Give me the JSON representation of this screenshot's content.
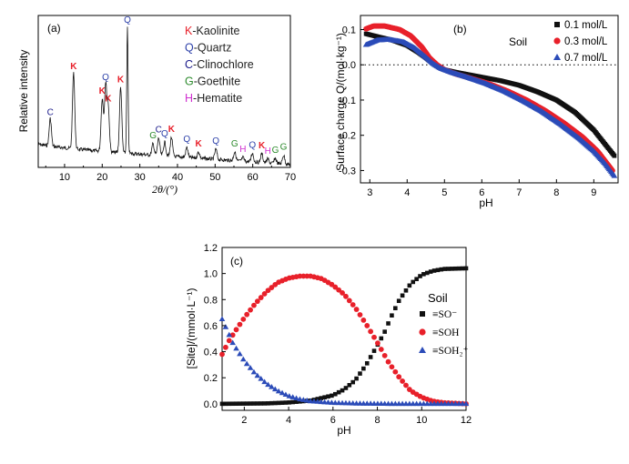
{
  "chart_data": [
    {
      "panel": "(a)",
      "type": "line",
      "xlabel": "2θ/(°)",
      "ylabel": "Relative intensity",
      "xlim": [
        3,
        70
      ],
      "xticks": [
        10,
        20,
        30,
        40,
        50,
        60,
        70
      ],
      "legend": {
        "placement": "top-right",
        "entries": [
          {
            "code": "K",
            "name": "-Kaolinite",
            "color": "#e8202a"
          },
          {
            "code": "Q",
            "name": "-Quartz",
            "color": "#2b3fa8"
          },
          {
            "code": "C",
            "name": "-Clinochlore",
            "color": "#1a1a8a"
          },
          {
            "code": "G",
            "name": "-Goethite",
            "color": "#2e8b2e"
          },
          {
            "code": "H",
            "name": "-Hematite",
            "color": "#d030d0"
          }
        ]
      },
      "peaks": [
        {
          "x": 6.2,
          "h": 0.22,
          "label": "C",
          "color": "#1a1a8a"
        },
        {
          "x": 12.4,
          "h": 0.6,
          "label": "K",
          "color": "#e8202a"
        },
        {
          "x": 20.0,
          "h": 0.42,
          "label": "K",
          "color": "#e8202a"
        },
        {
          "x": 20.9,
          "h": 0.53,
          "label": "Q",
          "color": "#2b3fa8"
        },
        {
          "x": 21.6,
          "h": 0.36,
          "label": "K",
          "color": "#e8202a"
        },
        {
          "x": 24.9,
          "h": 0.52,
          "label": "K",
          "color": "#e8202a"
        },
        {
          "x": 26.7,
          "h": 1.0,
          "label": "Q",
          "color": "#2b3fa8"
        },
        {
          "x": 33.5,
          "h": 0.09,
          "label": "G",
          "color": "#2e8b2e"
        },
        {
          "x": 35.0,
          "h": 0.14,
          "label": "C",
          "color": "#1a1a8a"
        },
        {
          "x": 36.6,
          "h": 0.11,
          "label": "Q",
          "color": "#2b3fa8"
        },
        {
          "x": 38.4,
          "h": 0.15,
          "label": "K",
          "color": "#e8202a"
        },
        {
          "x": 42.5,
          "h": 0.08,
          "label": "Q",
          "color": "#2b3fa8"
        },
        {
          "x": 45.6,
          "h": 0.05,
          "label": "K",
          "color": "#e8202a"
        },
        {
          "x": 50.2,
          "h": 0.08,
          "label": "Q",
          "color": "#2b3fa8"
        },
        {
          "x": 55.2,
          "h": 0.07,
          "label": "G",
          "color": "#2e8b2e"
        },
        {
          "x": 57.4,
          "h": 0.03,
          "label": "H",
          "color": "#d030d0"
        },
        {
          "x": 59.9,
          "h": 0.07,
          "label": "Q",
          "color": "#2b3fa8"
        },
        {
          "x": 62.4,
          "h": 0.07,
          "label": "K",
          "color": "#e8202a"
        },
        {
          "x": 64.0,
          "h": 0.03,
          "label": "H",
          "color": "#d030d0"
        },
        {
          "x": 66.0,
          "h": 0.04,
          "label": "G",
          "color": "#2e8b2e"
        },
        {
          "x": 68.2,
          "h": 0.07,
          "label": "G",
          "color": "#2e8b2e"
        }
      ]
    },
    {
      "panel": "(b)",
      "type": "scatter",
      "xlabel": "pH",
      "ylabel": "Surface charge Q/(mol·kg⁻¹)",
      "xlim": [
        2.75,
        9.65
      ],
      "ylim": [
        -0.335,
        0.14
      ],
      "xticks": [
        3,
        4,
        5,
        6,
        7,
        8,
        9
      ],
      "yticks": [
        0.1,
        0.0,
        -0.1,
        -0.2,
        -0.3
      ],
      "ytick_labels": [
        "0.1",
        "0.0",
        "-0.1",
        "-0.2",
        "-0.3"
      ],
      "zero_line": true,
      "annotation": "Soil",
      "legend": {
        "placement": "top-right"
      },
      "series": [
        {
          "name": "0.1 mol/L",
          "marker": "square",
          "color": "#111111",
          "points": [
            [
              2.9,
              0.088
            ],
            [
              3.2,
              0.08
            ],
            [
              3.6,
              0.07
            ],
            [
              4.0,
              0.055
            ],
            [
              4.3,
              0.035
            ],
            [
              4.6,
              0.012
            ],
            [
              4.8,
              -0.004
            ],
            [
              5.0,
              -0.014
            ],
            [
              5.3,
              -0.021
            ],
            [
              5.6,
              -0.027
            ],
            [
              6.0,
              -0.035
            ],
            [
              6.5,
              -0.045
            ],
            [
              7.0,
              -0.058
            ],
            [
              7.5,
              -0.077
            ],
            [
              8.0,
              -0.1
            ],
            [
              8.5,
              -0.135
            ],
            [
              9.0,
              -0.185
            ],
            [
              9.3,
              -0.225
            ],
            [
              9.55,
              -0.258
            ]
          ]
        },
        {
          "name": "0.3 mol/L",
          "marker": "circle",
          "color": "#e8202a",
          "points": [
            [
              2.9,
              0.102
            ],
            [
              3.1,
              0.11
            ],
            [
              3.4,
              0.11
            ],
            [
              3.8,
              0.1
            ],
            [
              4.1,
              0.082
            ],
            [
              4.4,
              0.05
            ],
            [
              4.6,
              0.02
            ],
            [
              4.8,
              0.0
            ],
            [
              5.0,
              -0.014
            ],
            [
              5.3,
              -0.026
            ],
            [
              5.7,
              -0.038
            ],
            [
              6.2,
              -0.054
            ],
            [
              6.7,
              -0.075
            ],
            [
              7.2,
              -0.1
            ],
            [
              7.7,
              -0.13
            ],
            [
              8.2,
              -0.165
            ],
            [
              8.7,
              -0.205
            ],
            [
              9.1,
              -0.245
            ],
            [
              9.5,
              -0.3
            ]
          ]
        },
        {
          "name": "0.7 mol/L",
          "marker": "triangle",
          "color": "#2b4bb8",
          "points": [
            [
              2.9,
              0.057
            ],
            [
              3.2,
              0.07
            ],
            [
              3.5,
              0.072
            ],
            [
              3.9,
              0.065
            ],
            [
              4.2,
              0.048
            ],
            [
              4.5,
              0.022
            ],
            [
              4.7,
              0.003
            ],
            [
              4.9,
              -0.01
            ],
            [
              5.2,
              -0.022
            ],
            [
              5.6,
              -0.035
            ],
            [
              6.1,
              -0.053
            ],
            [
              6.6,
              -0.075
            ],
            [
              7.1,
              -0.102
            ],
            [
              7.6,
              -0.132
            ],
            [
              8.1,
              -0.168
            ],
            [
              8.6,
              -0.208
            ],
            [
              9.0,
              -0.245
            ],
            [
              9.3,
              -0.28
            ],
            [
              9.55,
              -0.315
            ]
          ]
        }
      ]
    },
    {
      "panel": "(c)",
      "type": "scatter",
      "xlabel": "pH",
      "ylabel": "[Site]/(mmol·L⁻¹)",
      "xlim": [
        1,
        12
      ],
      "ylim": [
        -0.05,
        1.2
      ],
      "xticks": [
        2,
        4,
        6,
        8,
        10,
        12
      ],
      "yticks": [
        0.0,
        0.2,
        0.4,
        0.6,
        0.8,
        1.0,
        1.2
      ],
      "ytick_labels": [
        "0.0",
        "0.2",
        "0.4",
        "0.6",
        "0.8",
        "1.0",
        "1.2"
      ],
      "legend": {
        "placement": "right",
        "title": "Soil"
      },
      "series": [
        {
          "name": "≡SO⁻",
          "marker": "square",
          "color": "#111111",
          "points": [
            [
              1.0,
              0.0
            ],
            [
              3.0,
              0.003
            ],
            [
              4.0,
              0.01
            ],
            [
              5.0,
              0.025
            ],
            [
              6.0,
              0.065
            ],
            [
              6.5,
              0.11
            ],
            [
              7.0,
              0.18
            ],
            [
              7.5,
              0.3
            ],
            [
              8.0,
              0.45
            ],
            [
              8.3,
              0.54
            ],
            [
              8.6,
              0.66
            ],
            [
              9.0,
              0.8
            ],
            [
              9.5,
              0.92
            ],
            [
              10.0,
              0.99
            ],
            [
              10.5,
              1.02
            ],
            [
              11.0,
              1.035
            ],
            [
              12.0,
              1.04
            ]
          ]
        },
        {
          "name": "≡SOH",
          "marker": "circle",
          "color": "#e8202a",
          "points": [
            [
              1.0,
              0.38
            ],
            [
              1.3,
              0.48
            ],
            [
              1.6,
              0.56
            ],
            [
              2.0,
              0.66
            ],
            [
              2.5,
              0.77
            ],
            [
              3.0,
              0.86
            ],
            [
              3.5,
              0.93
            ],
            [
              4.0,
              0.965
            ],
            [
              4.5,
              0.98
            ],
            [
              5.0,
              0.98
            ],
            [
              5.5,
              0.96
            ],
            [
              6.0,
              0.91
            ],
            [
              6.5,
              0.84
            ],
            [
              7.0,
              0.74
            ],
            [
              7.5,
              0.61
            ],
            [
              8.0,
              0.47
            ],
            [
              8.5,
              0.32
            ],
            [
              9.0,
              0.2
            ],
            [
              9.5,
              0.1
            ],
            [
              10.0,
              0.05
            ],
            [
              10.5,
              0.02
            ],
            [
              11.0,
              0.008
            ],
            [
              12.0,
              0.0
            ]
          ]
        },
        {
          "name": "≡SOH₂⁺",
          "marker": "triangle",
          "color": "#2b4bb8",
          "points": [
            [
              1.0,
              0.65
            ],
            [
              1.5,
              0.46
            ],
            [
              2.0,
              0.33
            ],
            [
              2.5,
              0.23
            ],
            [
              3.0,
              0.155
            ],
            [
              3.5,
              0.1
            ],
            [
              4.0,
              0.06
            ],
            [
              4.5,
              0.035
            ],
            [
              5.0,
              0.02
            ],
            [
              6.0,
              0.008
            ],
            [
              7.0,
              0.003
            ],
            [
              8.0,
              0.001
            ],
            [
              9.0,
              0.0
            ],
            [
              12.0,
              0.0
            ]
          ]
        }
      ]
    }
  ]
}
